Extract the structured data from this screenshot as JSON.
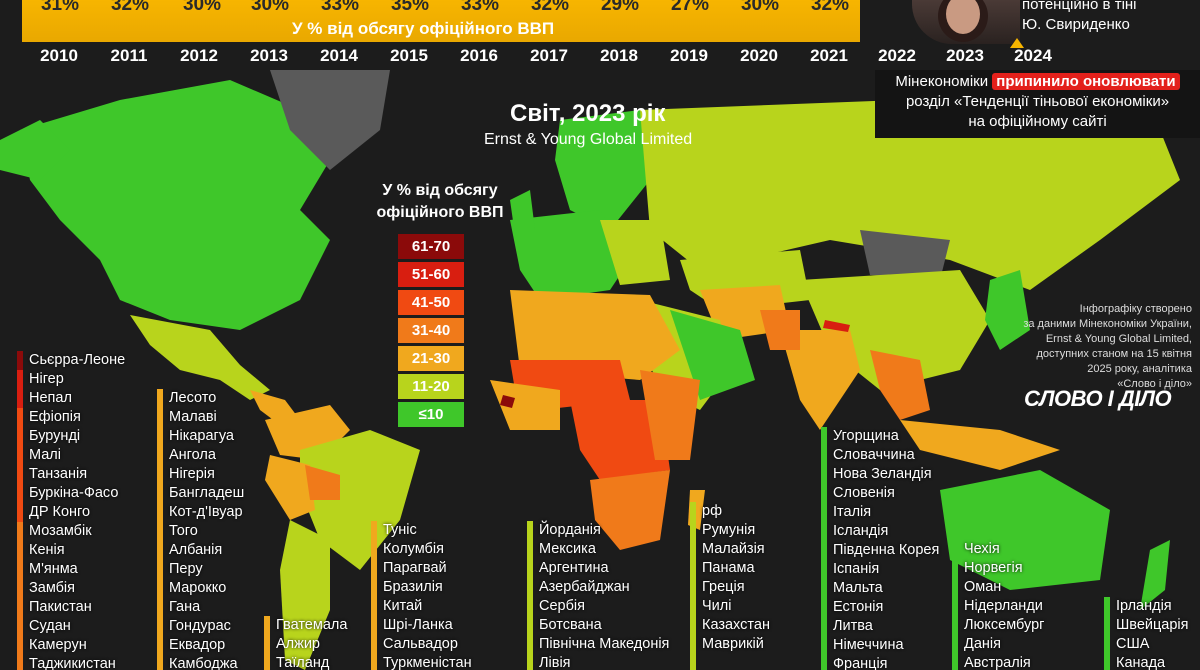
{
  "top": {
    "percentages": [
      "31%",
      "32%",
      "30%",
      "30%",
      "33%",
      "35%",
      "33%",
      "32%",
      "29%",
      "27%",
      "30%",
      "32%"
    ],
    "caption": "У % від обсягу офіційного ВВП",
    "years": [
      "2010",
      "2011",
      "2012",
      "2013",
      "2014",
      "2015",
      "2016",
      "2017",
      "2018",
      "2019",
      "2020",
      "2021",
      "2022",
      "2023",
      "2024"
    ]
  },
  "person": {
    "note": "потенційно в тінi",
    "name": "Ю. Свириденко"
  },
  "notice": {
    "line1_prefix": "Мінекономіки",
    "line1_highlight": "припинило оновлювати",
    "line2": "розділ «Тенденції тіньової економіки»",
    "line3": "на офіційному сайті"
  },
  "map": {
    "title": "Світ, 2023 рік",
    "subtitle": "Ernst & Young Global Limited",
    "legend_title_1": "У % від обсягу",
    "legend_title_2": "офіційного ВВП",
    "legend": [
      {
        "label": "61-70",
        "color": "#8b0a0a"
      },
      {
        "label": "51-60",
        "color": "#d81e10"
      },
      {
        "label": "41-50",
        "color": "#f04a12"
      },
      {
        "label": "31-40",
        "color": "#f07a1a"
      },
      {
        "label": "21-30",
        "color": "#f0a81e"
      },
      {
        "label": "11-20",
        "color": "#b8d41c"
      },
      {
        "label": "≤10",
        "color": "#3fc72a"
      }
    ],
    "no_data_color": "#5a5a5a"
  },
  "credits": {
    "line1": "Інфографіку створено",
    "line2": "за даними Мінекономіки України,",
    "line3": "Ernst & Young Global Limited,",
    "line4": "доступних станом на 15 квітня",
    "line5": "2025 року, аналітика",
    "line6": "«Слово і діло»",
    "logo": "СЛОВО І ДІЛО"
  },
  "columns": [
    {
      "color": "#8b0a0a",
      "items": [
        "Сьєрра-Леоне"
      ]
    },
    {
      "color": "#d81e10",
      "items": [
        "Нігер",
        "Непал"
      ]
    },
    {
      "color": "#f04a12",
      "items": [
        "Ефіопія",
        "Бурунді",
        "Малі",
        "Танзанія",
        "Буркіна-Фасо",
        "ДР Конго"
      ]
    },
    {
      "color": "#f07a1a",
      "items": [
        "Мозамбік",
        "Кенія",
        "М'янма",
        "Замбія",
        "Пакистан",
        "Судан",
        "Камерун",
        "Таджикистан"
      ]
    },
    {
      "color": "#f0a81e",
      "items": [
        "Лесото",
        "Малаві",
        "Нікарагуа",
        "Ангола",
        "Нігерія",
        "Бангладеш",
        "Кот-д'Івуар",
        "Того",
        "Албанія",
        "Перу",
        "Марокко",
        "Гана",
        "Гондурас",
        "Еквадор",
        "Камбоджа"
      ]
    },
    {
      "color": "#f0a81e",
      "items": [
        "Гватемала",
        "Алжир",
        "Таїланд"
      ]
    },
    {
      "color": "#f0a81e",
      "items": [
        "Туніс",
        "Колумбія",
        "Парагвай",
        "Бразилія",
        "Китай",
        "Шрі-Ланка",
        "Сальвадор",
        "Туркменістан"
      ]
    },
    {
      "color": "#b8d41c",
      "items": [
        "Йорданія",
        "Мексика",
        "Аргентина",
        "Азербайджан",
        "Сербія",
        "Ботсвана",
        "Північна Македонія",
        "Лівія"
      ]
    },
    {
      "color": "#b8d41c",
      "items": [
        "рф",
        "Румунія",
        "Малайзія",
        "Панама",
        "Греція",
        "Чилі",
        "Казахстан",
        "Маврикій"
      ]
    },
    {
      "color": "#3fc72a",
      "items": [
        "Угорщина",
        "Словаччина",
        "Нова Зеландія",
        "Словенія",
        "Італія",
        "Ісландія",
        "Південна Корея",
        "Іспанія",
        "Мальта",
        "Естонія",
        "Литва",
        "Німеччина",
        "Франція"
      ]
    },
    {
      "color": "#3fc72a",
      "items": [
        "Чехія",
        "Норвегія",
        "Оман",
        "Нідерланди",
        "Люксембург",
        "Данія",
        "Австралія"
      ]
    },
    {
      "color": "#3fc72a",
      "items": [
        "Ірландія",
        "Швейцарія",
        "США",
        "Канада"
      ]
    }
  ]
}
